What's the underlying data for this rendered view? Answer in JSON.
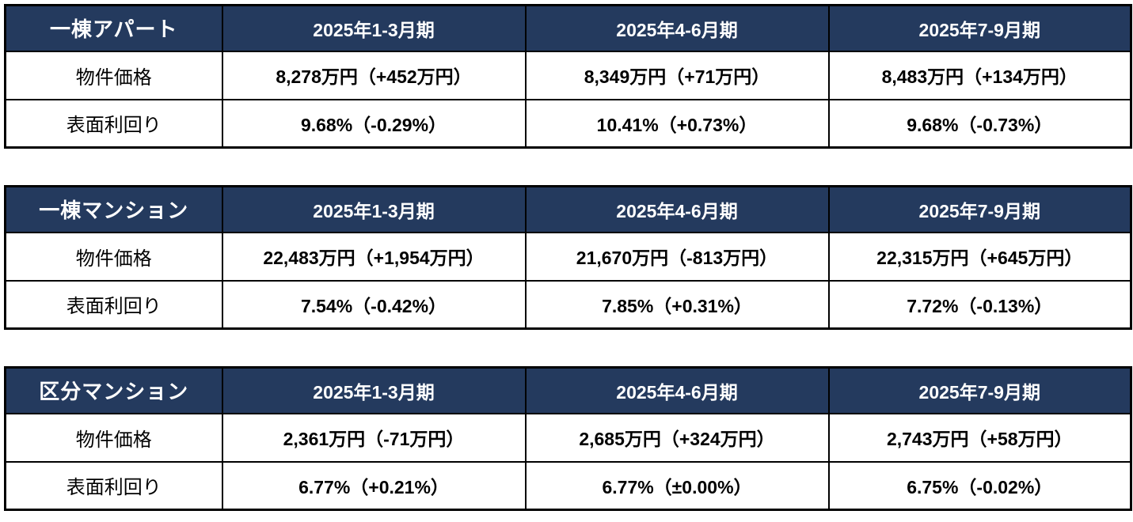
{
  "styles": {
    "header_bg": "#243A5E",
    "header_text": "#FFFFFF",
    "border_color": "#000000",
    "body_text": "#000000"
  },
  "row_labels": {
    "price": "物件価格",
    "yield": "表面利回り"
  },
  "chart_data": [
    {
      "type": "table",
      "title": "一棟アパート",
      "columns": [
        "2025年1-3月期",
        "2025年4-6月期",
        "2025年7-9月期"
      ],
      "rows": [
        {
          "label": "物件価格",
          "display": [
            "8,278万円（+452万円）",
            "8,349万円（+71万円）",
            "8,483万円（+134万円）"
          ],
          "values": [
            8278,
            8349,
            8483
          ],
          "change": [
            452,
            71,
            134
          ],
          "unit": "万円"
        },
        {
          "label": "表面利回り",
          "display": [
            "9.68%（-0.29%）",
            "10.41%（+0.73%）",
            "9.68%（-0.73%）"
          ],
          "values": [
            9.68,
            10.41,
            9.68
          ],
          "change": [
            -0.29,
            0.73,
            -0.73
          ],
          "unit": "%"
        }
      ]
    },
    {
      "type": "table",
      "title": "一棟マンション",
      "columns": [
        "2025年1-3月期",
        "2025年4-6月期",
        "2025年7-9月期"
      ],
      "rows": [
        {
          "label": "物件価格",
          "display": [
            "22,483万円（+1,954万円）",
            "21,670万円（-813万円）",
            "22,315万円（+645万円）"
          ],
          "values": [
            22483,
            21670,
            22315
          ],
          "change": [
            1954,
            -813,
            645
          ],
          "unit": "万円"
        },
        {
          "label": "表面利回り",
          "display": [
            "7.54%（-0.42%）",
            "7.85%（+0.31%）",
            "7.72%（-0.13%）"
          ],
          "values": [
            7.54,
            7.85,
            7.72
          ],
          "change": [
            -0.42,
            0.31,
            -0.13
          ],
          "unit": "%"
        }
      ]
    },
    {
      "type": "table",
      "title": "区分マンション",
      "columns": [
        "2025年1-3月期",
        "2025年4-6月期",
        "2025年7-9月期"
      ],
      "rows": [
        {
          "label": "物件価格",
          "display": [
            "2,361万円（-71万円）",
            "2,685万円（+324万円）",
            "2,743万円（+58万円）"
          ],
          "values": [
            2361,
            2685,
            2743
          ],
          "change": [
            -71,
            324,
            58
          ],
          "unit": "万円"
        },
        {
          "label": "表面利回り",
          "display": [
            "6.77%（+0.21%）",
            "6.77%（±0.00%）",
            "6.75%（-0.02%）"
          ],
          "values": [
            6.77,
            6.77,
            6.75
          ],
          "change": [
            0.21,
            0.0,
            -0.02
          ],
          "unit": "%"
        }
      ]
    }
  ]
}
